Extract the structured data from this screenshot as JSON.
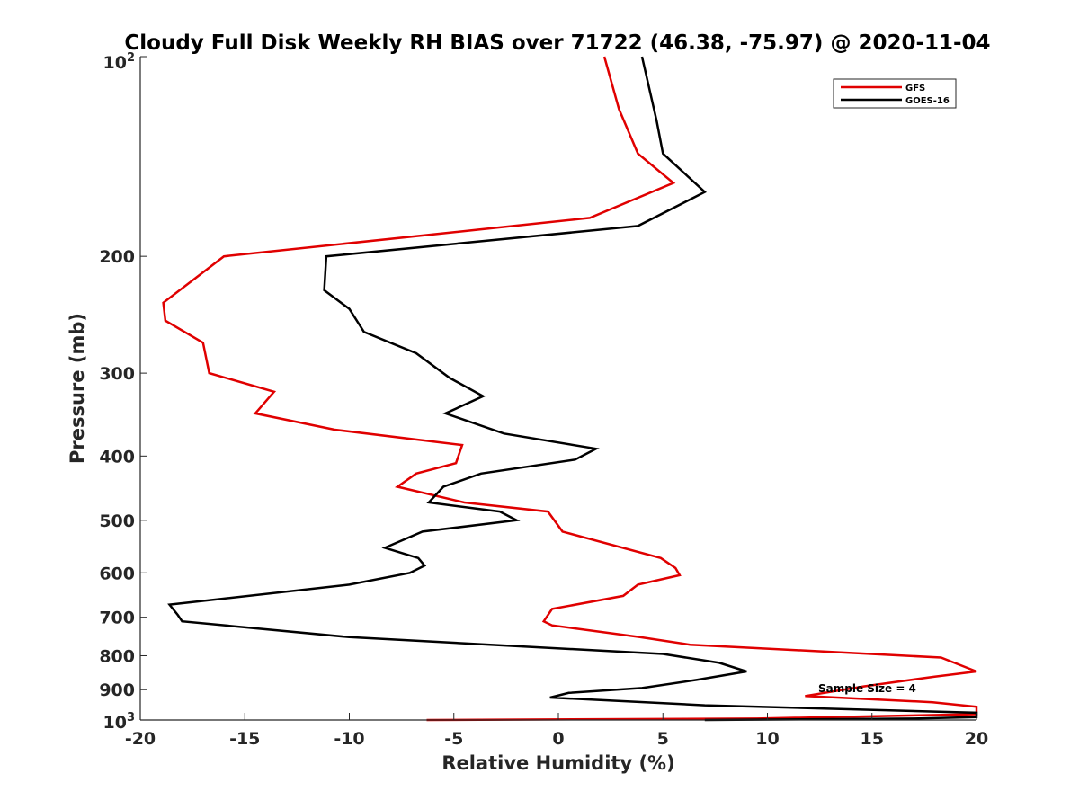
{
  "chart_data": {
    "type": "line",
    "title": "Cloudy Full Disk Weekly RH BIAS over 71722 (46.38, -75.97) @ 2020-11-04",
    "xlabel": "Relative Humidity (%)",
    "ylabel": "Pressure (mb)",
    "xlim": [
      -20,
      20
    ],
    "ylim": [
      100,
      1000
    ],
    "yscale": "log",
    "yreversed": true,
    "xticks": [
      -20,
      -15,
      -10,
      -5,
      0,
      5,
      10,
      15,
      20
    ],
    "xtick_labels": [
      "-20",
      "-15",
      "-10",
      "-5",
      "0",
      "5",
      "10",
      "15",
      "20"
    ],
    "yticks": [
      200,
      300,
      400,
      500,
      600,
      700,
      800,
      900
    ],
    "ytick_labels": [
      "200",
      "300",
      "400",
      "500",
      "600",
      "700",
      "800",
      "900"
    ],
    "y_endpoint_labels": {
      "top": {
        "base": "10",
        "exp": "2"
      },
      "bottom": {
        "base": "10",
        "exp": "3"
      }
    },
    "legend_location": "top-right",
    "annotation": "Sample Size = 4",
    "series": [
      {
        "name": "GFS",
        "color": "#e00000",
        "x": [
          2.2,
          2.9,
          3.8,
          5.5,
          1.5,
          -16.0,
          -18.9,
          -18.8,
          -17.0,
          -16.7,
          -13.6,
          -14.5,
          -10.7,
          -4.6,
          -4.9,
          -6.8,
          -7.7,
          -4.5,
          -0.5,
          0.2,
          4.9,
          5.6,
          5.8,
          3.8,
          3.1,
          -0.3,
          -0.7,
          -0.3,
          3.9,
          6.3,
          18.3,
          20.0,
          18.0,
          14.6,
          11.8,
          17.9,
          20.0,
          20.0,
          9.5,
          -6.3
        ],
        "y": [
          100,
          120,
          140,
          155,
          175,
          200,
          235,
          250,
          270,
          300,
          320,
          345,
          365,
          385,
          410,
          425,
          445,
          470,
          485,
          520,
          570,
          590,
          605,
          625,
          650,
          680,
          710,
          720,
          750,
          770,
          805,
          845,
          860,
          890,
          920,
          940,
          955,
          980,
          995,
          1000
        ]
      },
      {
        "name": "GOES-16",
        "color": "#000000",
        "x": [
          4.0,
          4.7,
          5.0,
          7.0,
          3.8,
          -11.1,
          -11.2,
          -10.0,
          -9.3,
          -6.8,
          -5.2,
          -3.6,
          -5.4,
          -2.6,
          1.8,
          0.8,
          -3.7,
          -5.5,
          -6.2,
          -2.8,
          -2.0,
          -6.5,
          -8.3,
          -6.7,
          -6.4,
          -7.1,
          -10.0,
          -18.6,
          -18.2,
          -18.0,
          -10.0,
          5.0,
          7.7,
          9.0,
          6.6,
          4.0,
          0.5,
          -0.4,
          7.0,
          20.0,
          20.0,
          17.0,
          7.0
        ],
        "y": [
          100,
          125,
          140,
          160,
          180,
          200,
          225,
          240,
          260,
          280,
          305,
          325,
          345,
          370,
          390,
          405,
          425,
          445,
          470,
          485,
          500,
          520,
          550,
          570,
          585,
          600,
          625,
          670,
          695,
          710,
          750,
          795,
          820,
          845,
          870,
          895,
          910,
          925,
          950,
          975,
          990,
          995,
          1000
        ]
      }
    ]
  }
}
